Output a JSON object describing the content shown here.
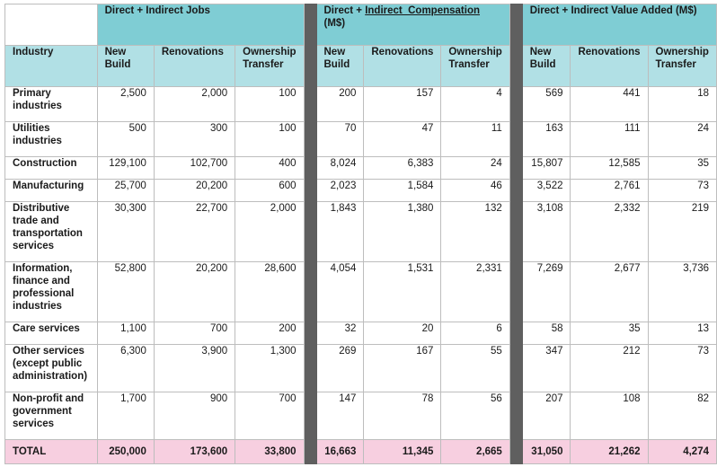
{
  "groups": {
    "jobs": "Direct + Indirect Jobs",
    "compensation_prefix": "Direct + ",
    "compensation_link": "Indirect  Compensation",
    "compensation_suffix": "(M$)",
    "value_added": "Direct + Indirect Value Added (M$)"
  },
  "headers": {
    "industry": "Industry",
    "new_build": "New Build",
    "renovations": "Renovations",
    "ownership_transfer": "Ownership Transfer"
  },
  "rows": [
    {
      "industry": "Primary industries",
      "values": [
        "2,500",
        "2,000",
        "100",
        "200",
        "157",
        "4",
        "569",
        "441",
        "18"
      ]
    },
    {
      "industry": "Utilities industries",
      "values": [
        "500",
        "300",
        "100",
        "70",
        "47",
        "11",
        "163",
        "111",
        "24"
      ]
    },
    {
      "industry": "Construction",
      "values": [
        "129,100",
        "102,700",
        "400",
        "8,024",
        "6,383",
        "24",
        "15,807",
        "12,585",
        "35"
      ]
    },
    {
      "industry": "Manufacturing",
      "values": [
        "25,700",
        "20,200",
        "600",
        "2,023",
        "1,584",
        "46",
        "3,522",
        "2,761",
        "73"
      ]
    },
    {
      "industry": "Distributive trade and transportation services",
      "values": [
        "30,300",
        "22,700",
        "2,000",
        "1,843",
        "1,380",
        "132",
        "3,108",
        "2,332",
        "219"
      ]
    },
    {
      "industry": "Information, finance and professional industries",
      "values": [
        "52,800",
        "20,200",
        "28,600",
        "4,054",
        "1,531",
        "2,331",
        "7,269",
        "2,677",
        "3,736"
      ]
    },
    {
      "industry": "Care services",
      "values": [
        "1,100",
        "700",
        "200",
        "32",
        "20",
        "6",
        "58",
        "35",
        "13"
      ]
    },
    {
      "industry": "Other services (except public administration)",
      "values": [
        "6,300",
        "3,900",
        "1,300",
        "269",
        "167",
        "55",
        "347",
        "212",
        "73"
      ]
    },
    {
      "industry": "Non-profit and government services",
      "values": [
        "1,700",
        "900",
        "700",
        "147",
        "78",
        "56",
        "207",
        "108",
        "82"
      ]
    },
    {
      "industry": "TOTAL",
      "values": [
        "250,000",
        "173,600",
        "33,800",
        "16,663",
        "11,345",
        "2,665",
        "31,050",
        "21,262",
        "4,274"
      ]
    }
  ]
}
